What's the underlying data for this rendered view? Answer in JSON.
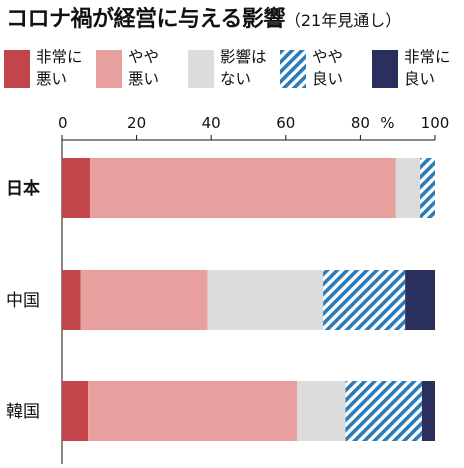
{
  "title": "コロナ禍が経営に与える影響",
  "subtitle": "（21年見通し）",
  "legend": [
    {
      "label": "非常に\n悪い",
      "color": "#c1454b",
      "pattern": "solid"
    },
    {
      "label": "やや\n悪い",
      "color": "#e8a09e",
      "pattern": "solid"
    },
    {
      "label": "影響は\nない",
      "color": "#dcdcdc",
      "pattern": "solid"
    },
    {
      "label": "やや\n良い",
      "color": "#2b7bb9",
      "pattern": "hatch"
    },
    {
      "label": "非常に\n良い",
      "color": "#2a2f5e",
      "pattern": "solid"
    }
  ],
  "chart_data": {
    "type": "bar",
    "orientation": "horizontal",
    "stacked": true,
    "categories": [
      "日本",
      "中国",
      "韓国"
    ],
    "category_bold": [
      true,
      false,
      false
    ],
    "series": [
      {
        "name": "非常に悪い",
        "values": [
          7.5,
          5.0,
          7.0
        ]
      },
      {
        "name": "やや悪い",
        "values": [
          82.0,
          34.0,
          56.0
        ]
      },
      {
        "name": "影響はない",
        "values": [
          6.5,
          31.0,
          13.0
        ]
      },
      {
        "name": "やや良い",
        "values": [
          4.0,
          22.0,
          20.5
        ]
      },
      {
        "name": "非常に良い",
        "values": [
          0.0,
          8.0,
          3.5
        ]
      }
    ],
    "xlim": [
      0,
      100
    ],
    "xticks": [
      0,
      20,
      40,
      60,
      80,
      100
    ],
    "unit": "%",
    "grid": false,
    "legend_position": "top"
  }
}
